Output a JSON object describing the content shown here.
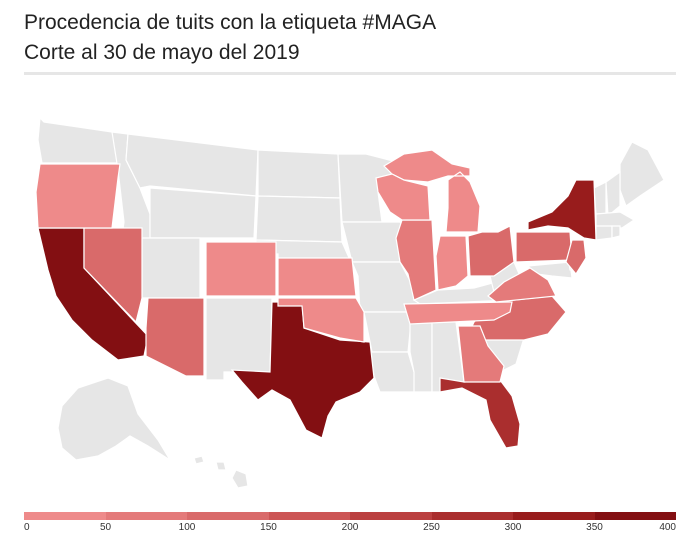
{
  "header": {
    "title": "Procedencia de tuits con la etiqueta #MAGA",
    "subtitle": "Corte al 30 de mayo del 2019"
  },
  "colors": {
    "no_data": "#e6e6e6",
    "border": "#ffffff",
    "scale": [
      "#ee8a8a",
      "#e47a7a",
      "#d96a6a",
      "#cc5555",
      "#bb4040",
      "#aa2e2e",
      "#981c1c",
      "#830f12"
    ]
  },
  "legend": {
    "ticks": [
      "0",
      "50",
      "100",
      "150",
      "200",
      "250",
      "300",
      "350",
      "400"
    ]
  },
  "chart_data": {
    "type": "choropleth",
    "title": "Procedencia de tuits con la etiqueta #MAGA",
    "subtitle": "Corte al 30 de mayo del 2019",
    "scale_range": [
      0,
      400
    ],
    "scale_bins": [
      0,
      50,
      100,
      150,
      200,
      250,
      300,
      350,
      400
    ],
    "states": [
      {
        "code": "CA",
        "value": 380
      },
      {
        "code": "TX",
        "value": 370
      },
      {
        "code": "NY",
        "value": 300
      },
      {
        "code": "FL",
        "value": 260
      },
      {
        "code": "NV",
        "value": 130
      },
      {
        "code": "AZ",
        "value": 120
      },
      {
        "code": "NC",
        "value": 110
      },
      {
        "code": "PA",
        "value": 110
      },
      {
        "code": "OH",
        "value": 100
      },
      {
        "code": "NJ",
        "value": 100
      },
      {
        "code": "IL",
        "value": 90
      },
      {
        "code": "VA",
        "value": 80
      },
      {
        "code": "GA",
        "value": 70
      },
      {
        "code": "MI",
        "value": 40
      },
      {
        "code": "WI",
        "value": 40
      },
      {
        "code": "IN",
        "value": 40
      },
      {
        "code": "TN",
        "value": 40
      },
      {
        "code": "OR",
        "value": 40
      },
      {
        "code": "CO",
        "value": 40
      },
      {
        "code": "KS",
        "value": 40
      },
      {
        "code": "OK",
        "value": 40
      }
    ]
  }
}
